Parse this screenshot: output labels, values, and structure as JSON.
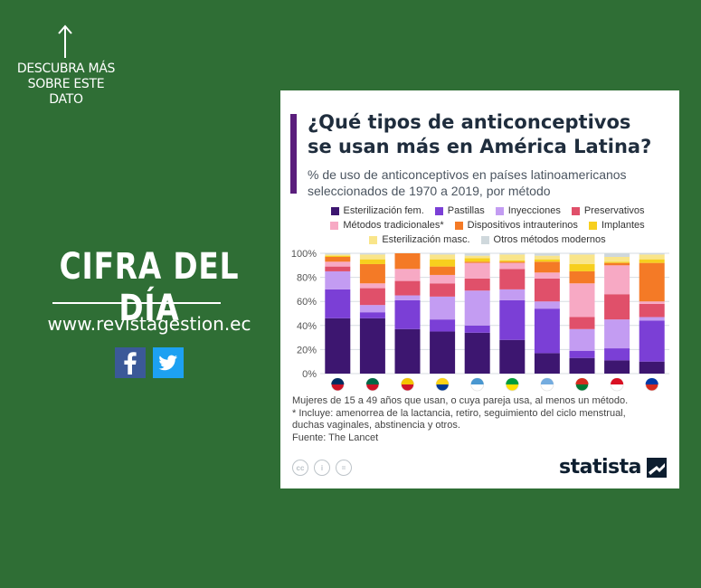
{
  "sidebar": {
    "more_link": "DESCUBRA MÁS SOBRE ESTE DATO",
    "headline": "CIFRA DEL DÍA",
    "website": "www.revistagestion.ec",
    "social": [
      "facebook-icon",
      "twitter-icon"
    ]
  },
  "colors": {
    "background": "#2f6e35",
    "accent": "#5a1e7c"
  },
  "chart_data": {
    "type": "bar",
    "stacked": true,
    "title": "¿Qué tipos de anticonceptivos\nse usan más en América Latina?",
    "subtitle": "% de uso de anticonceptivos en países latinoamericanos\nseleccionados de 1970 a 2019, por método",
    "categories": [
      "república-dominicana",
      "méxico",
      "venezuela",
      "colombia",
      "guatemala",
      "brasil",
      "argentina",
      "bolivia",
      "perú",
      "chile"
    ],
    "ylim": [
      0,
      100
    ],
    "y_ticks": [
      "0%",
      "20%",
      "40%",
      "60%",
      "80%",
      "100%"
    ],
    "legend_rows": [
      [
        "Esterilización fem.",
        "Pastillas",
        "Inyecciones",
        "Preservativos"
      ],
      [
        "Métodos tradicionales*",
        "Dispositivos intrauterinos",
        "Implantes"
      ],
      [
        "Esterilización masc.",
        "Otros métodos modernos"
      ]
    ],
    "series": [
      {
        "name": "Esterilización fem.",
        "color": "#3d1670",
        "values": [
          46,
          46,
          37,
          35,
          34,
          28,
          17,
          13,
          11,
          10
        ]
      },
      {
        "name": "Pastillas",
        "color": "#7b3fd6",
        "values": [
          24,
          5,
          24,
          10,
          6,
          33,
          37,
          6,
          10,
          34
        ]
      },
      {
        "name": "Inyecciones",
        "color": "#c39cf2",
        "values": [
          15,
          6,
          4,
          19,
          29,
          9,
          6,
          18,
          24,
          3
        ]
      },
      {
        "name": "Preservativos",
        "color": "#e0506a",
        "values": [
          4,
          14,
          12,
          11,
          10,
          17,
          19,
          10,
          21,
          11
        ]
      },
      {
        "name": "Métodos tradicionales*",
        "color": "#f7a9c4",
        "values": [
          4,
          4,
          10,
          7,
          13,
          5,
          5,
          28,
          24,
          2
        ]
      },
      {
        "name": "Dispositivos intrauterinos",
        "color": "#f47a26",
        "values": [
          4,
          16,
          13,
          7,
          1,
          1,
          9,
          10,
          2,
          32
        ]
      },
      {
        "name": "Implantes",
        "color": "#f7cf1e",
        "values": [
          1,
          4,
          0,
          6,
          3,
          1,
          2,
          6,
          1,
          3
        ]
      },
      {
        "name": "Esterilización masc.",
        "color": "#f9e58a",
        "values": [
          1,
          4,
          0,
          4,
          2,
          5,
          3,
          8,
          4,
          4
        ]
      },
      {
        "name": "Otros métodos modernos",
        "color": "#cfd8dc",
        "values": [
          1,
          1,
          0,
          1,
          2,
          1,
          2,
          1,
          3,
          1
        ]
      }
    ],
    "grid": true,
    "legend_position": "top"
  },
  "notes": {
    "line1": "Mujeres de 15 a 49 años que usan, o cuya pareja usa, al menos un método.",
    "line2": "* Incluye: amenorrea de la lactancia, retiro, seguimiento del ciclo menstrual,\n   duchas vaginales, abstinencia y otros.",
    "source": "Fuente: The Lancet"
  },
  "footer": {
    "license_icons": [
      "cc-icon",
      "by-icon",
      "nd-icon"
    ],
    "brand": "statista"
  }
}
